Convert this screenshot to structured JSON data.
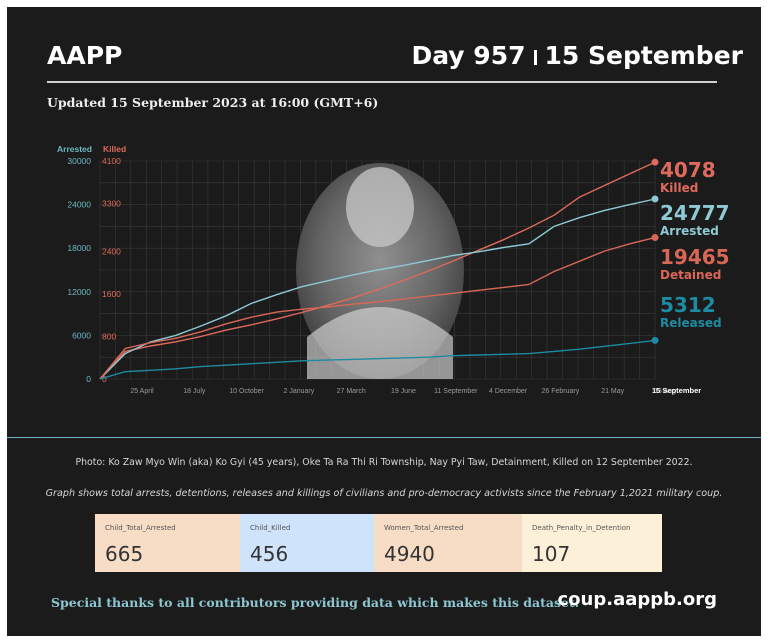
{
  "header": {
    "brand": "AAPP",
    "day": "Day 957",
    "date": "15 September",
    "updated": "Updated 15 September 2023 at 16:00 (GMT+6)"
  },
  "chart_data": {
    "type": "line",
    "x_tick_labels": [
      "25 April",
      "18 July",
      "10 October",
      "2 January",
      "27 March",
      "19 June",
      "11 September",
      "4 December",
      "26 February",
      "21 May",
      "13 Aug",
      "15 September"
    ],
    "y_axes": {
      "left": {
        "label": "Arrested",
        "range": [
          0,
          30000
        ],
        "ticks": [
          0,
          6000,
          12000,
          18000,
          24000,
          30000
        ],
        "color": "#6fb7c4"
      },
      "right": {
        "label": "Killed",
        "range": [
          0,
          4100
        ],
        "ticks": [
          "0",
          "800",
          "1600",
          "2400",
          "3300",
          "4100"
        ],
        "color": "#e06a5c"
      }
    },
    "series": [
      {
        "name": "Killed",
        "axis": "right",
        "color": "#e06a5c",
        "latest": "4078",
        "values": [
          0,
          520,
          620,
          700,
          800,
          920,
          1020,
          1130,
          1250,
          1380,
          1520,
          1680,
          1850,
          2030,
          2220,
          2420,
          2620,
          2840,
          3080,
          3420,
          3640,
          3860,
          4078
        ]
      },
      {
        "name": "Arrested",
        "axis": "left",
        "color": "#8fc9d3",
        "latest": "24777",
        "values": [
          0,
          3500,
          5100,
          6000,
          7300,
          8700,
          10400,
          11600,
          12700,
          13500,
          14300,
          15000,
          15600,
          16300,
          17000,
          17500,
          18100,
          18600,
          21000,
          22200,
          23200,
          24000,
          24777
        ]
      },
      {
        "name": "Detained",
        "axis": "left",
        "color": "#d96757",
        "latest": "19465",
        "values": [
          0,
          4200,
          5000,
          5600,
          6500,
          7600,
          8500,
          9200,
          9600,
          9900,
          10300,
          10600,
          11000,
          11400,
          11800,
          12200,
          12600,
          13000,
          14800,
          16200,
          17600,
          18600,
          19465
        ]
      },
      {
        "name": "Released",
        "axis": "left",
        "color": "#1e8ba3",
        "latest": "5312",
        "values": [
          0,
          1000,
          1200,
          1400,
          1700,
          1900,
          2100,
          2300,
          2500,
          2600,
          2700,
          2800,
          2900,
          3000,
          3200,
          3300,
          3400,
          3500,
          3800,
          4100,
          4500,
          4900,
          5312
        ]
      }
    ]
  },
  "captions": {
    "photo": "Photo: Ko Zaw Myo Win (aka) Ko Gyi (45 years), Oke Ta Ra Thi Ri Township, Nay Pyi Taw, Detainment, Killed on 12 September 2022.",
    "graph": "Graph shows total arrests, detentions, releases and killings of civilians and pro-democracy activists since the February 1,2021 military coup."
  },
  "cards": [
    {
      "label": "Child_Total_Arrested",
      "value": "665",
      "bg": "#f8ddc6"
    },
    {
      "label": "Child_Killed",
      "value": "456",
      "bg": "#cfe3fb"
    },
    {
      "label": "Women_Total_Arrested",
      "value": "4940",
      "bg": "#f8ddc6"
    },
    {
      "label": "Death_Penalty_in_Detention",
      "value": "107",
      "bg": "#fdf0d8"
    }
  ],
  "footer": {
    "thanks": "Special thanks to all contributors providing data which makes this dataset.",
    "site": "coup.aappb.org"
  }
}
